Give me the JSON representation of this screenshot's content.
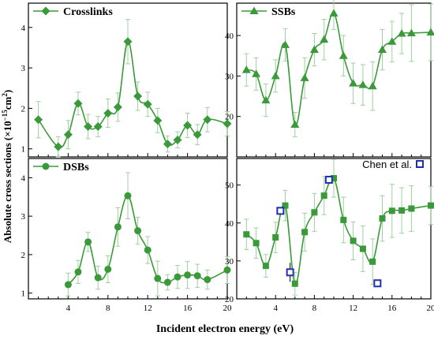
{
  "figure": {
    "ylabel": "Absolute cross sections (×10",
    "ylabel_exp": "−15",
    "ylabel_unit": "cm",
    "ylabel_exp2": "2",
    "ylabel_close": ")",
    "xlabel": "Incident electron energy (eV)"
  },
  "colors": {
    "series": "#3a9a3a",
    "error": "#9fd09f",
    "reference": "#1f2fb0",
    "axis": "#000000"
  },
  "chart_data": [
    {
      "type": "line",
      "legend": "Crosslinks",
      "marker": "diamond",
      "xlim": [
        0,
        20
      ],
      "ylim": [
        0.8,
        4.6
      ],
      "yticks": [
        1,
        2,
        3,
        4
      ],
      "x_tick_labels": false,
      "x": [
        1,
        3,
        4,
        5,
        6,
        7,
        8,
        9,
        10,
        11,
        12,
        13,
        14,
        15,
        16,
        17,
        18,
        20
      ],
      "y": [
        1.72,
        1.05,
        1.35,
        2.12,
        1.55,
        1.55,
        1.88,
        2.03,
        3.65,
        2.3,
        2.1,
        1.7,
        1.12,
        1.22,
        1.58,
        1.35,
        1.72,
        1.62
      ],
      "err": [
        0.45,
        0.25,
        0.35,
        0.28,
        0.3,
        0.25,
        0.35,
        0.35,
        0.55,
        0.35,
        0.3,
        0.3,
        0.2,
        0.2,
        0.3,
        0.25,
        0.3,
        0.3
      ]
    },
    {
      "type": "line",
      "legend": "SSBs",
      "marker": "triangle",
      "xlim": [
        0,
        20
      ],
      "ylim": [
        10,
        48
      ],
      "yticks": [
        20,
        30,
        40
      ],
      "x_tick_labels": false,
      "x": [
        1,
        2,
        3,
        4,
        5,
        6,
        7,
        8,
        9,
        10,
        11,
        12,
        13,
        14,
        15,
        16,
        17,
        18,
        20
      ],
      "y": [
        31.5,
        30.5,
        24,
        30,
        37.7,
        18,
        29.5,
        36.5,
        39,
        45.5,
        35,
        28.2,
        27.8,
        27.5,
        36.5,
        38.5,
        40.5,
        40.6,
        40.8
      ],
      "err": [
        4,
        4,
        4,
        4,
        4,
        3,
        5,
        4,
        5,
        4,
        5,
        5,
        5,
        6,
        5,
        5,
        5,
        7,
        7
      ]
    },
    {
      "type": "line",
      "legend": "DSBs",
      "marker": "circle",
      "xlim": [
        0,
        20
      ],
      "ylim": [
        0.85,
        4.5
      ],
      "yticks": [
        1,
        2,
        3,
        4
      ],
      "xticks": [
        4,
        8,
        12,
        16,
        20
      ],
      "x": [
        4,
        5,
        6,
        7,
        8,
        9,
        10,
        11,
        12,
        13,
        14,
        15,
        16,
        17,
        18,
        20
      ],
      "y": [
        1.22,
        1.55,
        2.33,
        1.4,
        1.62,
        2.72,
        3.53,
        2.62,
        2.12,
        1.38,
        1.28,
        1.42,
        1.47,
        1.45,
        1.35,
        1.6
      ],
      "err": [
        0.3,
        0.3,
        0.25,
        0.3,
        0.35,
        0.5,
        0.6,
        0.35,
        0.35,
        0.45,
        0.2,
        0.3,
        0.35,
        0.3,
        0.25,
        0.35
      ]
    },
    {
      "type": "line",
      "legend": "Chen et al.",
      "marker": "square",
      "xlim": [
        0,
        20
      ],
      "ylim": [
        20,
        57
      ],
      "yticks": [
        20,
        30,
        40,
        50
      ],
      "xticks": [
        4,
        8,
        12,
        16,
        20
      ],
      "x": [
        1,
        2,
        3,
        4,
        5,
        6,
        7,
        8,
        9,
        10,
        11,
        12,
        13,
        14,
        15,
        16,
        17,
        18,
        20
      ],
      "y": [
        37,
        34.7,
        28.7,
        36.2,
        44.6,
        24,
        37.6,
        42.8,
        47.2,
        51.8,
        40.8,
        35.3,
        33.2,
        29.8,
        41.2,
        43.2,
        43.3,
        43.8,
        44.6
      ],
      "err": [
        4,
        4,
        3,
        4,
        4,
        3,
        5,
        5,
        5,
        5,
        6,
        5,
        6,
        6,
        6,
        7,
        6,
        6,
        5
      ],
      "reference": {
        "name": "Chen et al.",
        "x": [
          4.5,
          5.5,
          9.5,
          14.5
        ],
        "y": [
          43.2,
          27,
          51.4,
          24.1
        ],
        "err": [
          0.8,
          2.5,
          0.8,
          0.5
        ]
      }
    }
  ]
}
